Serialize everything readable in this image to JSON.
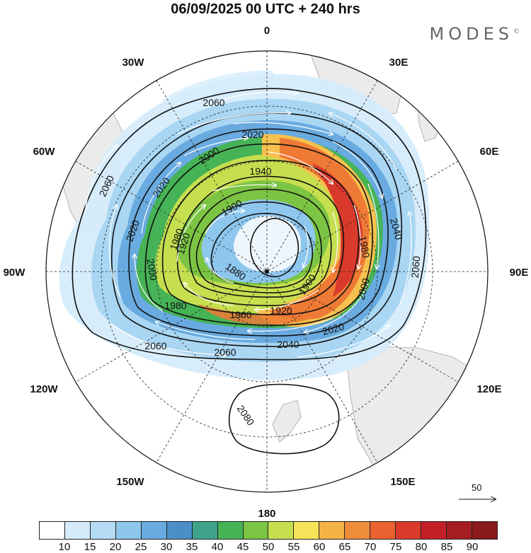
{
  "title": "06/09/2025  00 UTC  + 240 hrs",
  "brand": "MODES",
  "brand_mark": "©",
  "longitude_labels": [
    "0",
    "30E",
    "60E",
    "90E",
    "120E",
    "150E",
    "180",
    "150W",
    "120W",
    "90W",
    "60W",
    "30W"
  ],
  "contour_labels": [
    "2060",
    "2060",
    "2060",
    "2060",
    "2060",
    "2040",
    "2040",
    "2020",
    "2020",
    "2020",
    "2020",
    "2000",
    "2000",
    "2000",
    "1980",
    "1980",
    "1980",
    "1960",
    "1940",
    "1920",
    "1920",
    "1900",
    "1900",
    "1880",
    "2080"
  ],
  "reference_vector": {
    "value": "50"
  },
  "colorbar": {
    "ticks": [
      "10",
      "15",
      "20",
      "25",
      "30",
      "35",
      "40",
      "45",
      "50",
      "55",
      "60",
      "65",
      "70",
      "75",
      "80",
      "85",
      "90"
    ],
    "colors": [
      "#ffffff",
      "#d6ecfb",
      "#b4dcf5",
      "#8ec7ee",
      "#69abe0",
      "#4a8fc8",
      "#3ea38a",
      "#46b356",
      "#7cc443",
      "#c6df4f",
      "#f6e35a",
      "#f4b347",
      "#ef8c3c",
      "#e9622f",
      "#d93a2b",
      "#c21f27",
      "#a51d22",
      "#8b1a1c"
    ]
  }
}
